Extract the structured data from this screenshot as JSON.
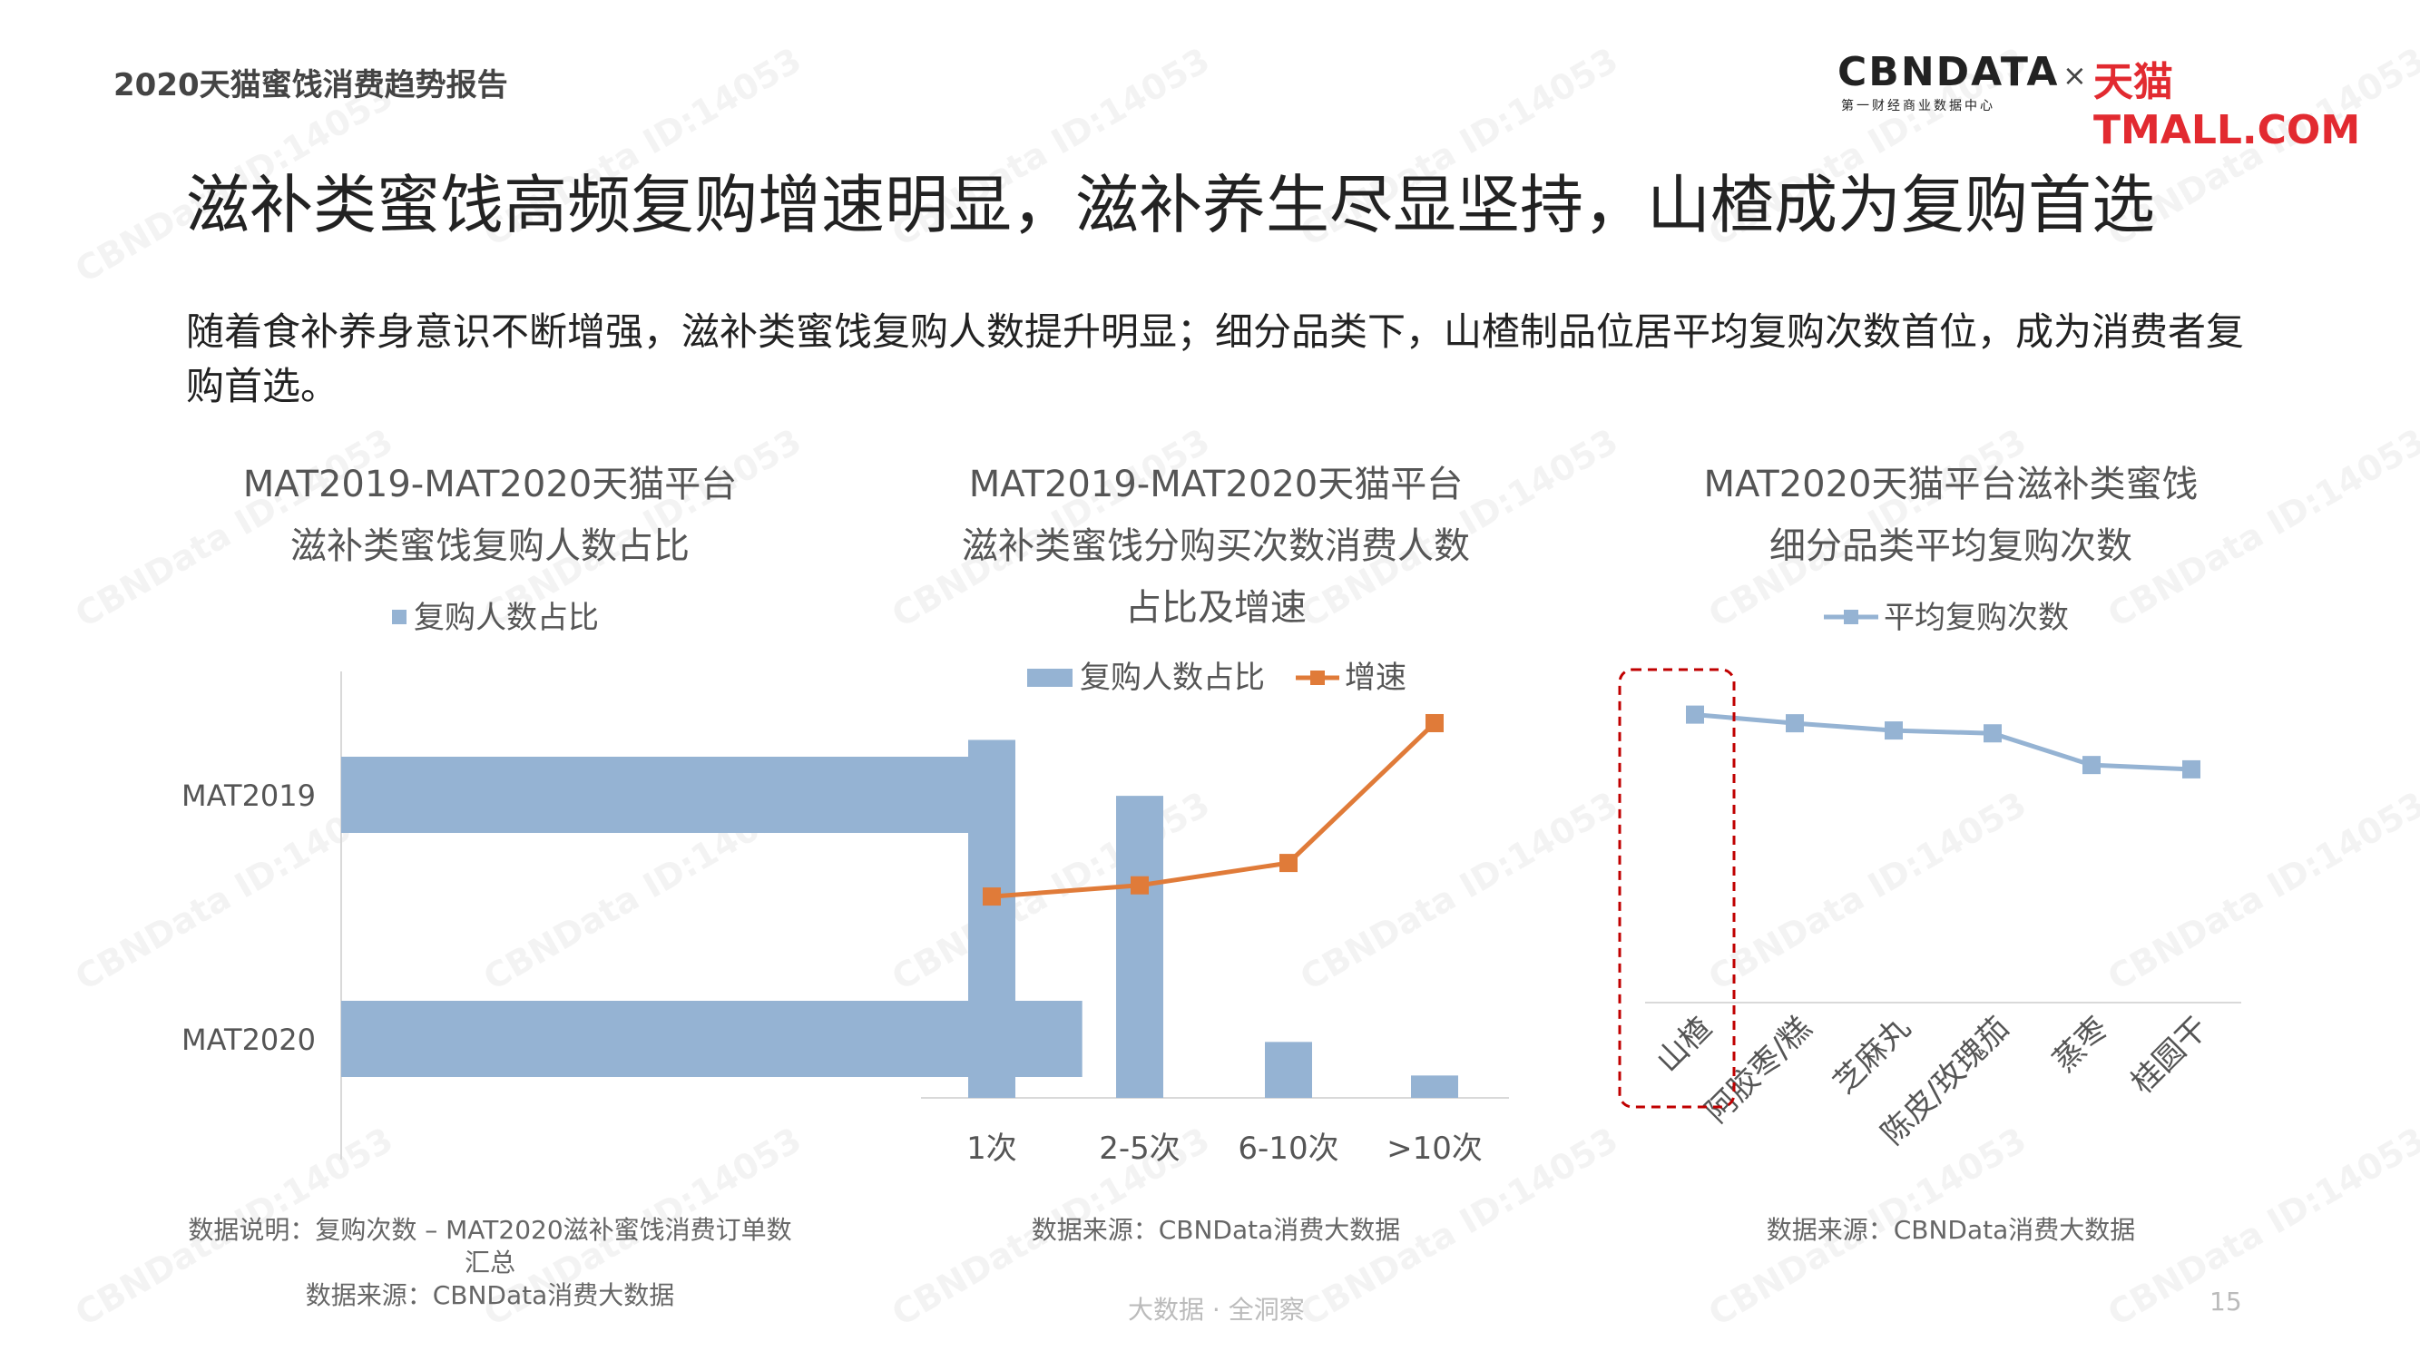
{
  "report_name": "2020天猫蜜饯消费趋势报告",
  "logo": {
    "cbn": "CBNDATA",
    "cbn_sub": "第一财经商业数据中心",
    "times": "×",
    "tmall": "天猫TMALL.COM"
  },
  "headline": "滋补类蜜饯高频复购增速明显，滋补养生尽显坚持，山楂成为复购首选",
  "summary": "随着食补养身意识不断增强，滋补类蜜饯复购人数提升明显；细分品类下，山楂制品位居平均复购次数首位，成为消费者复购首选。",
  "watermark": "CBNData ID:14053",
  "footer": "大数据 · 全洞察",
  "page_number": "15",
  "colors": {
    "bar": "#95b3d3",
    "line_orange": "#e07b39",
    "line_blue": "#95b3d3",
    "highlight": "#c00000"
  },
  "chart1": {
    "title_line1": "MAT2019-MAT2020天猫平台",
    "title_line2": "滋补类蜜饯复购人数占比",
    "note_line1": "数据说明：复购次数 – MAT2020滋补蜜饯消费订单数",
    "note_line2": "汇总",
    "note_line3": "数据来源：CBNData消费大数据"
  },
  "chart2": {
    "title_line1": "MAT2019-MAT2020天猫平台",
    "title_line2": "滋补类蜜饯分购买次数消费人数",
    "title_line3": "占比及增速",
    "note": "数据来源：CBNData消费大数据"
  },
  "chart3": {
    "title_line1": "MAT2020天猫平台滋补类蜜饯",
    "title_line2": "细分品类平均复购次数",
    "note": "数据来源：CBNData消费大数据"
  },
  "chart_data": [
    {
      "type": "bar",
      "orientation": "horizontal",
      "categories": [
        "MAT2019",
        "MAT2020"
      ],
      "series": [
        {
          "name": "复购人数占比",
          "values": [
            0.88,
            0.98
          ]
        }
      ],
      "xlim": [
        0,
        1.2
      ],
      "grid": false,
      "legend": "top"
    },
    {
      "type": "bar",
      "categories": [
        "1次",
        "2-5次",
        "6-10次",
        ">10次"
      ],
      "series": [
        {
          "name": "复购人数占比",
          "type": "bar",
          "values": [
            0.64,
            0.54,
            0.1,
            0.04
          ]
        },
        {
          "name": "增速",
          "type": "line",
          "values": [
            0.36,
            0.38,
            0.42,
            0.67
          ]
        }
      ],
      "ylim": [
        0,
        0.73
      ],
      "grid": false,
      "legend": "top"
    },
    {
      "type": "line",
      "categories": [
        "山楂",
        "阿胶枣/糕",
        "芝麻丸",
        "陈皮/玫瑰茄",
        "蒸枣",
        "桂圆干"
      ],
      "series": [
        {
          "name": "平均复购次数",
          "values": [
            3.0,
            2.94,
            2.89,
            2.87,
            2.65,
            2.62
          ]
        }
      ],
      "ylim": [
        1.0,
        3.3
      ],
      "grid": false,
      "legend": "top",
      "highlight_category": "山楂"
    }
  ]
}
